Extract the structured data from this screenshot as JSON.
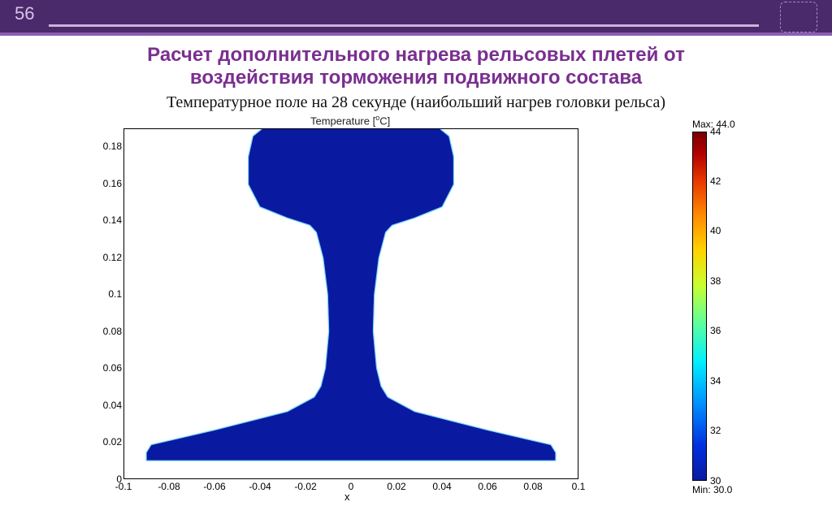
{
  "page_number": "56",
  "title": {
    "line1": "Расчет дополнительного нагрева рельсовых плетей от",
    "line2": "воздействия торможения подвижного состава",
    "color": "#7a2f8f",
    "fontsize_pt": 24
  },
  "subtitle": {
    "text": "Температурное поле на 28 секунде (наибольший нагрев головки рельса)",
    "color": "#111111",
    "fontsize_pt": 20
  },
  "topbar": {
    "background": "#4b2a6b",
    "accent": "#8a5fb0",
    "rule": "#c9b3dd",
    "pagenum_color": "#d6c2e8"
  },
  "plot": {
    "type": "heatmap",
    "structure": "rail-cross-section",
    "title_html": "Temperature [<sup>o</sup>C]",
    "title_plain": "Temperature [°C]",
    "title_fontsize_pt": 11,
    "background_color": "#ffffff",
    "border_color": "#000000",
    "fill_color_dominant": "#0a1aa0",
    "head_edge_color": "#00b0ff",
    "xlabel": "x",
    "x_axis": {
      "min": -0.1,
      "max": 0.1,
      "tick_step": 0.02,
      "ticks": [
        -0.1,
        -0.08,
        -0.06,
        -0.04,
        -0.02,
        0,
        0.02,
        0.04,
        0.06,
        0.08,
        0.1
      ]
    },
    "y_axis": {
      "min": 0,
      "max": 0.19,
      "tick_step": 0.02,
      "ticks": [
        0,
        0.02,
        0.04,
        0.06,
        0.08,
        0.1,
        0.12,
        0.14,
        0.16,
        0.18
      ]
    },
    "tick_fontsize_pt": 10,
    "rail_outline_points": [
      [
        -0.039,
        0.19
      ],
      [
        0.039,
        0.19
      ],
      [
        0.043,
        0.186
      ],
      [
        0.045,
        0.175
      ],
      [
        0.045,
        0.16
      ],
      [
        0.04,
        0.148
      ],
      [
        0.028,
        0.142
      ],
      [
        0.018,
        0.138
      ],
      [
        0.015,
        0.134
      ],
      [
        0.012,
        0.12
      ],
      [
        0.01,
        0.1
      ],
      [
        0.0095,
        0.08
      ],
      [
        0.011,
        0.06
      ],
      [
        0.013,
        0.05
      ],
      [
        0.016,
        0.044
      ],
      [
        0.028,
        0.036
      ],
      [
        0.06,
        0.026
      ],
      [
        0.088,
        0.018
      ],
      [
        0.09,
        0.014
      ],
      [
        0.09,
        0.01
      ],
      [
        -0.09,
        0.01
      ],
      [
        -0.09,
        0.014
      ],
      [
        -0.088,
        0.018
      ],
      [
        -0.06,
        0.026
      ],
      [
        -0.028,
        0.036
      ],
      [
        -0.016,
        0.044
      ],
      [
        -0.013,
        0.05
      ],
      [
        -0.011,
        0.06
      ],
      [
        -0.0095,
        0.08
      ],
      [
        -0.01,
        0.1
      ],
      [
        -0.012,
        0.12
      ],
      [
        -0.015,
        0.134
      ],
      [
        -0.018,
        0.138
      ],
      [
        -0.028,
        0.142
      ],
      [
        -0.04,
        0.148
      ],
      [
        -0.045,
        0.16
      ],
      [
        -0.045,
        0.175
      ],
      [
        -0.043,
        0.186
      ],
      [
        -0.039,
        0.19
      ]
    ]
  },
  "colorbar": {
    "min_value": 30,
    "max_value": 44,
    "max_label": "Max: 44.0",
    "min_label": "Min: 30.0",
    "ticks": [
      30,
      32,
      34,
      36,
      38,
      40,
      42,
      44
    ],
    "gradient_stops": [
      {
        "pct": 0,
        "color": "#7a0000"
      },
      {
        "pct": 6,
        "color": "#b20000"
      },
      {
        "pct": 14,
        "color": "#e83800"
      },
      {
        "pct": 24,
        "color": "#ff8c00"
      },
      {
        "pct": 34,
        "color": "#ffd400"
      },
      {
        "pct": 44,
        "color": "#c8ff2e"
      },
      {
        "pct": 55,
        "color": "#5cff9e"
      },
      {
        "pct": 66,
        "color": "#00f0ff"
      },
      {
        "pct": 78,
        "color": "#0090ff"
      },
      {
        "pct": 90,
        "color": "#0030e0"
      },
      {
        "pct": 100,
        "color": "#0a1aa0"
      }
    ],
    "tick_fontsize_pt": 10
  }
}
